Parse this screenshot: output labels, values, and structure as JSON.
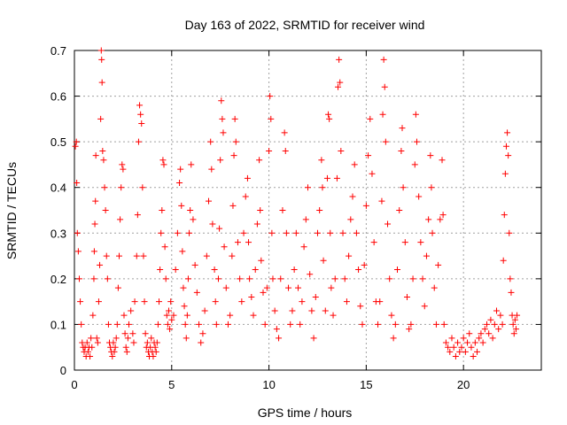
{
  "chart_data": {
    "type": "scatter",
    "title": "Day 163 of 2022, SRMTID for receiver wind",
    "xlabel": "GPS time / hours",
    "ylabel": "SRMTID / TECUs",
    "xlim": [
      0,
      24
    ],
    "ylim": [
      0,
      0.7
    ],
    "xticks": [
      0,
      5,
      10,
      15,
      20
    ],
    "yticks": [
      0,
      0.1,
      0.2,
      0.3,
      0.4,
      0.5,
      0.6,
      0.7
    ],
    "xtick_labels": [
      "0",
      "5",
      "10",
      "15",
      "20"
    ],
    "ytick_labels": [
      "0",
      "0.1",
      "0.2",
      "0.3",
      "0.4",
      "0.5",
      "0.6",
      "0.7"
    ],
    "grid": true,
    "legend": "none",
    "marker": "+",
    "color": "#ff0000",
    "series": [
      {
        "name": "SRMTID",
        "points": [
          [
            0.05,
            0.49
          ],
          [
            0.1,
            0.5
          ],
          [
            0.12,
            0.41
          ],
          [
            0.15,
            0.3
          ],
          [
            0.2,
            0.26
          ],
          [
            0.25,
            0.2
          ],
          [
            0.3,
            0.15
          ],
          [
            0.35,
            0.1
          ],
          [
            0.4,
            0.06
          ],
          [
            0.45,
            0.05
          ],
          [
            0.5,
            0.04
          ],
          [
            0.55,
            0.05
          ],
          [
            0.6,
            0.03
          ],
          [
            0.65,
            0.06
          ],
          [
            0.7,
            0.04
          ],
          [
            0.75,
            0.05
          ],
          [
            0.8,
            0.03
          ],
          [
            0.85,
            0.07
          ],
          [
            0.9,
            0.05
          ],
          [
            0.95,
            0.12
          ],
          [
            1.0,
            0.2
          ],
          [
            1.02,
            0.26
          ],
          [
            1.05,
            0.32
          ],
          [
            1.08,
            0.37
          ],
          [
            1.1,
            0.47
          ],
          [
            1.15,
            0.07
          ],
          [
            1.2,
            0.06
          ],
          [
            1.25,
            0.15
          ],
          [
            1.3,
            0.23
          ],
          [
            1.35,
            0.55
          ],
          [
            1.38,
            0.7
          ],
          [
            1.4,
            0.68
          ],
          [
            1.42,
            0.63
          ],
          [
            1.45,
            0.48
          ],
          [
            1.5,
            0.46
          ],
          [
            1.55,
            0.4
          ],
          [
            1.6,
            0.35
          ],
          [
            1.65,
            0.25
          ],
          [
            1.7,
            0.2
          ],
          [
            1.75,
            0.1
          ],
          [
            1.8,
            0.06
          ],
          [
            1.85,
            0.05
          ],
          [
            1.9,
            0.04
          ],
          [
            1.95,
            0.03
          ],
          [
            2.0,
            0.06
          ],
          [
            2.05,
            0.04
          ],
          [
            2.1,
            0.05
          ],
          [
            2.15,
            0.07
          ],
          [
            2.2,
            0.1
          ],
          [
            2.25,
            0.18
          ],
          [
            2.3,
            0.25
          ],
          [
            2.35,
            0.33
          ],
          [
            2.4,
            0.4
          ],
          [
            2.45,
            0.45
          ],
          [
            2.5,
            0.44
          ],
          [
            2.55,
            0.12
          ],
          [
            2.6,
            0.08
          ],
          [
            2.65,
            0.05
          ],
          [
            2.7,
            0.04
          ],
          [
            2.75,
            0.07
          ],
          [
            2.8,
            0.1
          ],
          [
            2.9,
            0.13
          ],
          [
            3.0,
            0.08
          ],
          [
            3.05,
            0.06
          ],
          [
            3.1,
            0.15
          ],
          [
            3.2,
            0.25
          ],
          [
            3.25,
            0.34
          ],
          [
            3.3,
            0.5
          ],
          [
            3.35,
            0.58
          ],
          [
            3.4,
            0.56
          ],
          [
            3.45,
            0.54
          ],
          [
            3.5,
            0.4
          ],
          [
            3.55,
            0.25
          ],
          [
            3.6,
            0.15
          ],
          [
            3.65,
            0.08
          ],
          [
            3.7,
            0.05
          ],
          [
            3.75,
            0.06
          ],
          [
            3.8,
            0.04
          ],
          [
            3.85,
            0.03
          ],
          [
            3.9,
            0.05
          ],
          [
            3.95,
            0.07
          ],
          [
            4.0,
            0.04
          ],
          [
            4.05,
            0.03
          ],
          [
            4.1,
            0.06
          ],
          [
            4.15,
            0.05
          ],
          [
            4.2,
            0.04
          ],
          [
            4.25,
            0.06
          ],
          [
            4.3,
            0.1
          ],
          [
            4.35,
            0.15
          ],
          [
            4.4,
            0.22
          ],
          [
            4.45,
            0.3
          ],
          [
            4.5,
            0.35
          ],
          [
            4.55,
            0.46
          ],
          [
            4.6,
            0.45
          ],
          [
            4.65,
            0.27
          ],
          [
            4.7,
            0.2
          ],
          [
            4.75,
            0.12
          ],
          [
            4.8,
            0.1
          ],
          [
            4.85,
            0.13
          ],
          [
            4.9,
            0.09
          ],
          [
            4.95,
            0.15
          ],
          [
            5.0,
            0.11
          ],
          [
            5.1,
            0.12
          ],
          [
            5.2,
            0.22
          ],
          [
            5.3,
            0.3
          ],
          [
            5.4,
            0.41
          ],
          [
            5.45,
            0.44
          ],
          [
            5.5,
            0.36
          ],
          [
            5.55,
            0.26
          ],
          [
            5.6,
            0.18
          ],
          [
            5.65,
            0.14
          ],
          [
            5.7,
            0.1
          ],
          [
            5.75,
            0.07
          ],
          [
            5.8,
            0.12
          ],
          [
            5.85,
            0.2
          ],
          [
            5.9,
            0.3
          ],
          [
            5.95,
            0.35
          ],
          [
            6.0,
            0.45
          ],
          [
            6.1,
            0.33
          ],
          [
            6.2,
            0.23
          ],
          [
            6.3,
            0.17
          ],
          [
            6.4,
            0.1
          ],
          [
            6.5,
            0.06
          ],
          [
            6.6,
            0.08
          ],
          [
            6.7,
            0.13
          ],
          [
            6.8,
            0.25
          ],
          [
            6.9,
            0.37
          ],
          [
            7.0,
            0.5
          ],
          [
            7.05,
            0.44
          ],
          [
            7.1,
            0.32
          ],
          [
            7.2,
            0.22
          ],
          [
            7.25,
            0.15
          ],
          [
            7.3,
            0.1
          ],
          [
            7.4,
            0.2
          ],
          [
            7.45,
            0.31
          ],
          [
            7.5,
            0.46
          ],
          [
            7.55,
            0.59
          ],
          [
            7.6,
            0.55
          ],
          [
            7.65,
            0.52
          ],
          [
            7.7,
            0.27
          ],
          [
            7.8,
            0.18
          ],
          [
            7.9,
            0.1
          ],
          [
            8.0,
            0.12
          ],
          [
            8.1,
            0.25
          ],
          [
            8.15,
            0.36
          ],
          [
            8.2,
            0.47
          ],
          [
            8.25,
            0.55
          ],
          [
            8.3,
            0.5
          ],
          [
            8.4,
            0.28
          ],
          [
            8.5,
            0.2
          ],
          [
            8.6,
            0.15
          ],
          [
            8.7,
            0.3
          ],
          [
            8.8,
            0.38
          ],
          [
            8.9,
            0.42
          ],
          [
            8.95,
            0.28
          ],
          [
            9.0,
            0.2
          ],
          [
            9.1,
            0.16
          ],
          [
            9.2,
            0.12
          ],
          [
            9.3,
            0.22
          ],
          [
            9.4,
            0.32
          ],
          [
            9.5,
            0.46
          ],
          [
            9.55,
            0.35
          ],
          [
            9.6,
            0.24
          ],
          [
            9.7,
            0.17
          ],
          [
            9.8,
            0.1
          ],
          [
            9.9,
            0.18
          ],
          [
            10.0,
            0.48
          ],
          [
            10.05,
            0.6
          ],
          [
            10.1,
            0.55
          ],
          [
            10.15,
            0.3
          ],
          [
            10.2,
            0.2
          ],
          [
            10.3,
            0.13
          ],
          [
            10.4,
            0.09
          ],
          [
            10.5,
            0.07
          ],
          [
            10.6,
            0.2
          ],
          [
            10.7,
            0.35
          ],
          [
            10.8,
            0.52
          ],
          [
            10.85,
            0.48
          ],
          [
            10.9,
            0.3
          ],
          [
            11.0,
            0.18
          ],
          [
            11.1,
            0.1
          ],
          [
            11.2,
            0.13
          ],
          [
            11.3,
            0.22
          ],
          [
            11.4,
            0.3
          ],
          [
            11.5,
            0.18
          ],
          [
            11.6,
            0.1
          ],
          [
            11.7,
            0.15
          ],
          [
            11.8,
            0.27
          ],
          [
            11.9,
            0.33
          ],
          [
            12.0,
            0.4
          ],
          [
            12.1,
            0.21
          ],
          [
            12.2,
            0.13
          ],
          [
            12.3,
            0.07
          ],
          [
            12.4,
            0.16
          ],
          [
            12.5,
            0.3
          ],
          [
            12.6,
            0.35
          ],
          [
            12.7,
            0.46
          ],
          [
            12.75,
            0.4
          ],
          [
            12.8,
            0.24
          ],
          [
            12.9,
            0.13
          ],
          [
            13.0,
            0.42
          ],
          [
            13.05,
            0.56
          ],
          [
            13.1,
            0.55
          ],
          [
            13.15,
            0.3
          ],
          [
            13.2,
            0.18
          ],
          [
            13.3,
            0.12
          ],
          [
            13.4,
            0.2
          ],
          [
            13.5,
            0.42
          ],
          [
            13.55,
            0.62
          ],
          [
            13.6,
            0.68
          ],
          [
            13.65,
            0.63
          ],
          [
            13.7,
            0.48
          ],
          [
            13.8,
            0.3
          ],
          [
            13.9,
            0.2
          ],
          [
            14.0,
            0.15
          ],
          [
            14.1,
            0.25
          ],
          [
            14.2,
            0.33
          ],
          [
            14.3,
            0.38
          ],
          [
            14.4,
            0.45
          ],
          [
            14.5,
            0.3
          ],
          [
            14.6,
            0.22
          ],
          [
            14.7,
            0.14
          ],
          [
            14.8,
            0.1
          ],
          [
            14.9,
            0.23
          ],
          [
            15.0,
            0.36
          ],
          [
            15.1,
            0.47
          ],
          [
            15.2,
            0.55
          ],
          [
            15.3,
            0.43
          ],
          [
            15.4,
            0.28
          ],
          [
            15.5,
            0.15
          ],
          [
            15.6,
            0.1
          ],
          [
            15.7,
            0.15
          ],
          [
            15.8,
            0.37
          ],
          [
            15.85,
            0.56
          ],
          [
            15.9,
            0.68
          ],
          [
            15.95,
            0.62
          ],
          [
            16.0,
            0.5
          ],
          [
            16.1,
            0.32
          ],
          [
            16.2,
            0.2
          ],
          [
            16.3,
            0.12
          ],
          [
            16.4,
            0.07
          ],
          [
            16.5,
            0.1
          ],
          [
            16.6,
            0.22
          ],
          [
            16.7,
            0.35
          ],
          [
            16.8,
            0.48
          ],
          [
            16.85,
            0.53
          ],
          [
            16.9,
            0.4
          ],
          [
            17.0,
            0.28
          ],
          [
            17.1,
            0.16
          ],
          [
            17.2,
            0.09
          ],
          [
            17.3,
            0.1
          ],
          [
            17.4,
            0.2
          ],
          [
            17.5,
            0.45
          ],
          [
            17.55,
            0.56
          ],
          [
            17.6,
            0.5
          ],
          [
            17.7,
            0.38
          ],
          [
            17.8,
            0.28
          ],
          [
            17.9,
            0.2
          ],
          [
            18.0,
            0.14
          ],
          [
            18.1,
            0.25
          ],
          [
            18.2,
            0.33
          ],
          [
            18.3,
            0.47
          ],
          [
            18.35,
            0.4
          ],
          [
            18.4,
            0.3
          ],
          [
            18.5,
            0.18
          ],
          [
            18.6,
            0.1
          ],
          [
            18.7,
            0.23
          ],
          [
            18.8,
            0.33
          ],
          [
            18.9,
            0.46
          ],
          [
            18.95,
            0.34
          ],
          [
            19.0,
            0.1
          ],
          [
            19.1,
            0.06
          ],
          [
            19.2,
            0.05
          ],
          [
            19.3,
            0.04
          ],
          [
            19.4,
            0.07
          ],
          [
            19.5,
            0.05
          ],
          [
            19.6,
            0.03
          ],
          [
            19.7,
            0.06
          ],
          [
            19.8,
            0.04
          ],
          [
            19.9,
            0.05
          ],
          [
            20.0,
            0.07
          ],
          [
            20.1,
            0.04
          ],
          [
            20.2,
            0.06
          ],
          [
            20.3,
            0.08
          ],
          [
            20.4,
            0.05
          ],
          [
            20.5,
            0.03
          ],
          [
            20.6,
            0.06
          ],
          [
            20.7,
            0.04
          ],
          [
            20.8,
            0.07
          ],
          [
            20.9,
            0.08
          ],
          [
            21.0,
            0.06
          ],
          [
            21.1,
            0.09
          ],
          [
            21.2,
            0.1
          ],
          [
            21.3,
            0.08
          ],
          [
            21.4,
            0.11
          ],
          [
            21.5,
            0.07
          ],
          [
            21.6,
            0.1
          ],
          [
            21.7,
            0.13
          ],
          [
            21.8,
            0.09
          ],
          [
            21.9,
            0.12
          ],
          [
            22.0,
            0.1
          ],
          [
            22.05,
            0.24
          ],
          [
            22.1,
            0.34
          ],
          [
            22.15,
            0.43
          ],
          [
            22.2,
            0.49
          ],
          [
            22.25,
            0.52
          ],
          [
            22.3,
            0.47
          ],
          [
            22.35,
            0.3
          ],
          [
            22.4,
            0.2
          ],
          [
            22.45,
            0.17
          ],
          [
            22.5,
            0.12
          ],
          [
            22.55,
            0.1
          ],
          [
            22.6,
            0.08
          ],
          [
            22.65,
            0.11
          ],
          [
            22.7,
            0.09
          ],
          [
            22.75,
            0.12
          ]
        ]
      }
    ]
  }
}
